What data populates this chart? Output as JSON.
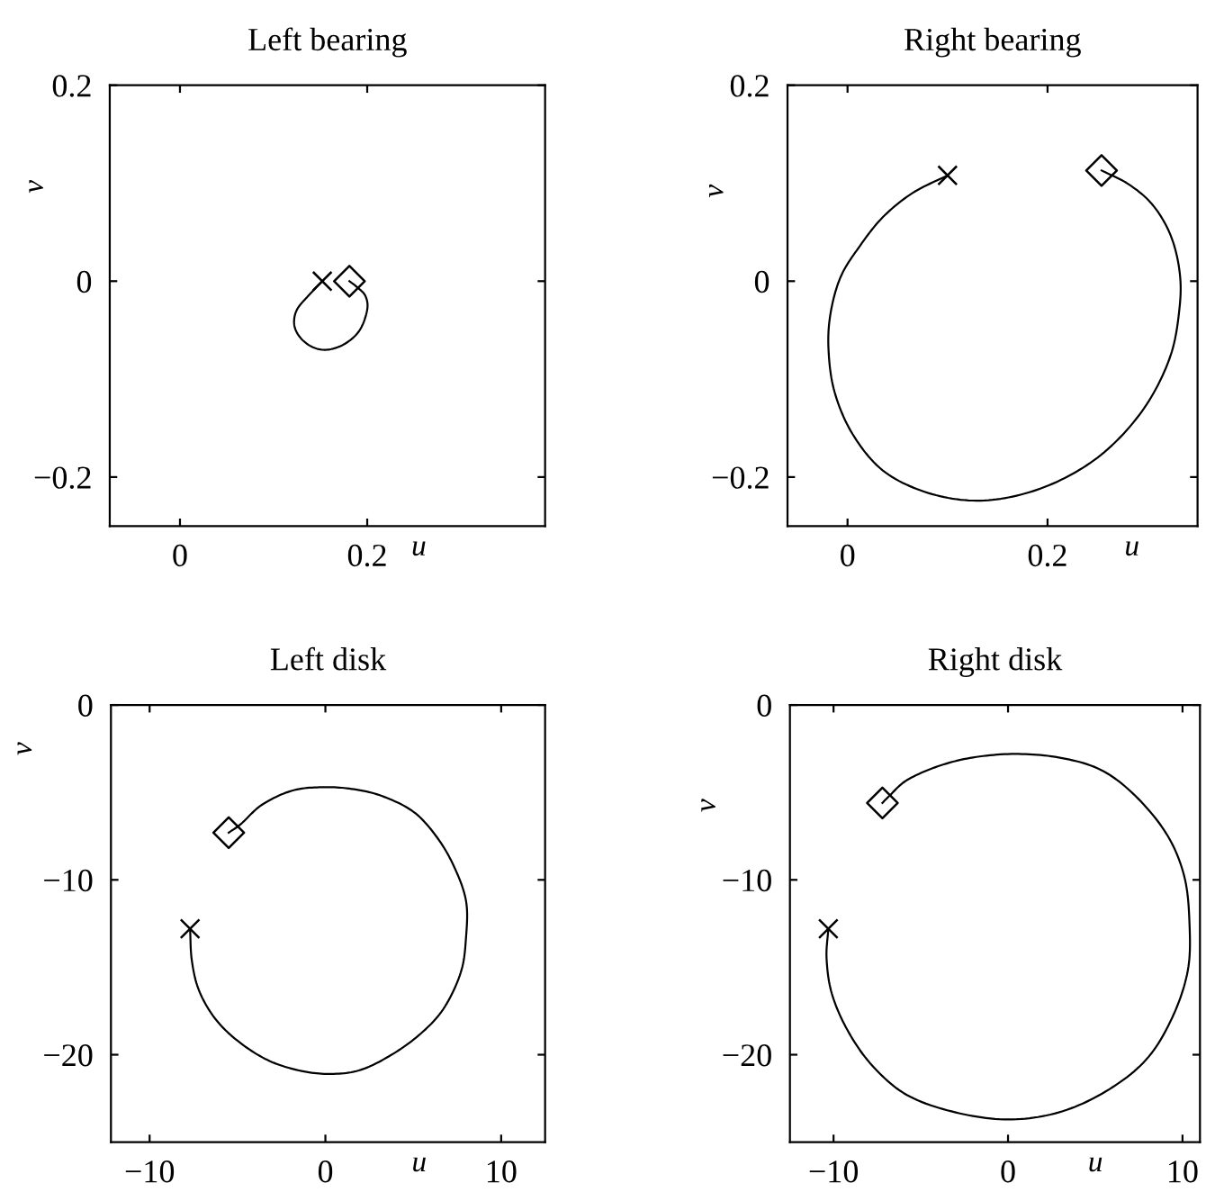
{
  "chart_data": [
    {
      "type": "line",
      "title": "Left bearing",
      "xlabel": "u",
      "ylabel": "v",
      "xlim": [
        -0.075,
        0.39
      ],
      "ylim": [
        -0.25,
        0.2
      ],
      "xticks": [
        0,
        0.2
      ],
      "yticks": [
        {
          "value": -0.2,
          "label": "−0.2"
        },
        0,
        0.2
      ],
      "series": [
        {
          "color": "#000000",
          "x": [
            0.152,
            0.138,
            0.125,
            0.122,
            0.128,
            0.141,
            0.157,
            0.176,
            0.192,
            0.2,
            0.198,
            0.189,
            0.181
          ],
          "values": [
            0.0,
            -0.014,
            -0.029,
            -0.044,
            -0.057,
            -0.067,
            -0.07,
            -0.064,
            -0.05,
            -0.029,
            -0.015,
            -0.006,
            0.0
          ]
        },
        {
          "type": "scatter",
          "marker": "cross",
          "color": "#000000",
          "x": [
            0.152
          ],
          "values": [
            0.0
          ]
        },
        {
          "type": "scatter",
          "marker": "diamond",
          "color": "#000000",
          "x": [
            0.181
          ],
          "values": [
            0.0
          ]
        }
      ]
    },
    {
      "type": "line",
      "title": "Right bearing",
      "xlabel": "u",
      "ylabel": "v",
      "xlim": [
        -0.06,
        0.35
      ],
      "ylim": [
        -0.25,
        0.2
      ],
      "xticks": [
        0,
        0.2
      ],
      "yticks": [
        {
          "value": -0.2,
          "label": "−0.2"
        },
        0,
        0.2
      ],
      "series": [
        {
          "color": "#000000",
          "x": [
            0.1,
            0.065,
            0.035,
            0.011,
            -0.007,
            -0.017,
            -0.019,
            -0.013,
            0.005,
            0.035,
            0.077,
            0.125,
            0.173,
            0.221,
            0.263,
            0.299,
            0.323,
            0.332,
            0.332,
            0.323,
            0.305,
            0.281,
            0.254
          ],
          "values": [
            0.108,
            0.09,
            0.065,
            0.034,
            0.004,
            -0.033,
            -0.07,
            -0.113,
            -0.156,
            -0.193,
            -0.215,
            -0.224,
            -0.218,
            -0.199,
            -0.169,
            -0.126,
            -0.076,
            -0.027,
            0.01,
            0.047,
            0.078,
            0.099,
            0.113
          ]
        },
        {
          "type": "scatter",
          "marker": "cross",
          "color": "#000000",
          "x": [
            0.1
          ],
          "values": [
            0.108
          ]
        },
        {
          "type": "scatter",
          "marker": "diamond",
          "color": "#000000",
          "x": [
            0.254
          ],
          "values": [
            0.113
          ]
        }
      ]
    },
    {
      "type": "line",
      "title": "Left disk",
      "xlabel": "u",
      "ylabel": "v",
      "xlim": [
        -12.2,
        12.5
      ],
      "ylim": [
        -25,
        0
      ],
      "xticks": [
        {
          "value": -10,
          "label": "−10"
        },
        0,
        10
      ],
      "yticks": [
        {
          "value": -20,
          "label": "−20"
        },
        {
          "value": -10,
          "label": "−10"
        },
        0
      ],
      "series": [
        {
          "color": "#000000",
          "x": [
            -7.7,
            -7.6,
            -7.2,
            -6.3,
            -5.0,
            -3.3,
            -1.5,
            0.2,
            1.9,
            3.6,
            5.3,
            6.7,
            7.7,
            8.0,
            8.0,
            7.3,
            6.3,
            5.0,
            3.2,
            1.5,
            -0.2,
            -1.9,
            -3.6,
            -4.8,
            -5.5
          ],
          "values": [
            -12.8,
            -14.6,
            -16.3,
            -17.9,
            -19.2,
            -20.3,
            -20.9,
            -21.1,
            -20.9,
            -20.1,
            -18.9,
            -17.4,
            -15.3,
            -13.3,
            -11.2,
            -9.2,
            -7.5,
            -6.1,
            -5.2,
            -4.8,
            -4.7,
            -4.9,
            -5.7,
            -6.8,
            -7.3
          ]
        },
        {
          "type": "scatter",
          "marker": "cross",
          "color": "#000000",
          "x": [
            -7.7
          ],
          "values": [
            -12.8
          ]
        },
        {
          "type": "scatter",
          "marker": "diamond",
          "color": "#000000",
          "x": [
            -5.5
          ],
          "values": [
            -7.3
          ]
        }
      ]
    },
    {
      "type": "line",
      "title": "Right disk",
      "xlabel": "u",
      "ylabel": "v",
      "xlim": [
        -12.5,
        11
      ],
      "ylim": [
        -25,
        0
      ],
      "xticks": [
        {
          "value": -10,
          "label": "−10"
        },
        0,
        10
      ],
      "yticks": [
        {
          "value": -20,
          "label": "−20"
        },
        {
          "value": -10,
          "label": "−10"
        },
        0
      ],
      "series": [
        {
          "color": "#000000",
          "x": [
            -10.3,
            -10.4,
            -10.1,
            -9.2,
            -7.8,
            -5.8,
            -3.0,
            0.0,
            2.9,
            5.6,
            7.9,
            9.4,
            10.3,
            10.4,
            10.1,
            9.1,
            7.3,
            5.3,
            2.9,
            0.4,
            -2.0,
            -4.0,
            -5.8,
            -6.8,
            -7.2
          ],
          "values": [
            -12.8,
            -14.5,
            -16.5,
            -18.6,
            -20.6,
            -22.3,
            -23.3,
            -23.7,
            -23.3,
            -22.1,
            -20.3,
            -17.9,
            -15.2,
            -12.5,
            -9.8,
            -7.4,
            -5.2,
            -3.7,
            -3.0,
            -2.8,
            -3.0,
            -3.5,
            -4.3,
            -5.2,
            -5.6
          ]
        },
        {
          "type": "scatter",
          "marker": "cross",
          "color": "#000000",
          "x": [
            -10.3
          ],
          "values": [
            -12.8
          ]
        },
        {
          "type": "scatter",
          "marker": "diamond",
          "color": "#000000",
          "x": [
            -7.2
          ],
          "values": [
            -5.6
          ]
        }
      ]
    }
  ]
}
